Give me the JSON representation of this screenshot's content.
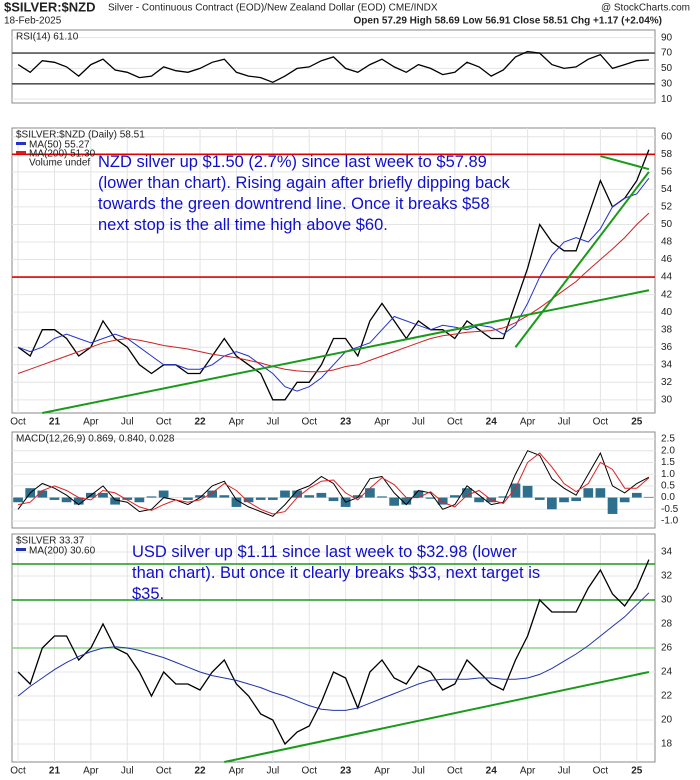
{
  "header": {
    "symbol": "$SILVER:$NZD",
    "description": "Silver - Continuous Contract (EOD)/New Zealand Dollar (EOD) CME/INDX",
    "date": "18-Feb-2025",
    "source": "@ StockCharts.com",
    "quote": "Open 57.29 High 58.69 Low 56.91 Close 58.51 Chg +1.17 (+2.04%)"
  },
  "chart_data": [
    {
      "type": "line",
      "title": "RSI(14) 61.10",
      "ylim": [
        5,
        100
      ],
      "yticks": [
        10,
        30,
        50,
        70,
        90
      ],
      "hlines": [
        {
          "value": 70,
          "color": "#555555"
        },
        {
          "value": 30,
          "color": "#555555"
        }
      ],
      "series": [
        {
          "color": "#000000",
          "values": [
            55,
            45,
            60,
            58,
            52,
            40,
            55,
            62,
            48,
            45,
            38,
            40,
            52,
            47,
            45,
            50,
            58,
            62,
            45,
            40,
            38,
            32,
            40,
            50,
            52,
            60,
            65,
            50,
            45,
            55,
            62,
            52,
            45,
            55,
            50,
            42,
            45,
            58,
            52,
            40,
            48,
            65,
            72,
            70,
            55,
            50,
            52,
            62,
            68,
            50,
            55,
            60,
            61.1
          ]
        }
      ]
    },
    {
      "type": "line",
      "title": "$SILVER:$NZD (Daily) 58.51",
      "note": "Volume undef",
      "annotation": "NZD silver up $1.50 (2.7%) since last week to $57.89 (lower than chart). Rising again after briefly dipping back towards the green downtrend line. Once it breaks $58 next stop is the all time high above $60.",
      "categories": [
        "Oct",
        null,
        null,
        "21",
        null,
        null,
        "Apr",
        null,
        null,
        "Jul",
        null,
        null,
        "Oct",
        null,
        null,
        "22",
        null,
        null,
        "Apr",
        null,
        null,
        "Jul",
        null,
        null,
        "Oct",
        null,
        null,
        "23",
        null,
        null,
        "Apr",
        null,
        null,
        "Jul",
        null,
        null,
        "Oct",
        null,
        null,
        "24",
        null,
        null,
        "Apr",
        null,
        null,
        "Jul",
        null,
        null,
        "Oct",
        null,
        null,
        "25",
        null
      ],
      "ylim": [
        28.5,
        61
      ],
      "yticks": [
        30,
        32,
        34,
        36,
        38,
        40,
        42,
        44,
        46,
        48,
        50,
        52,
        54,
        56,
        58,
        60
      ],
      "hlines": [
        {
          "value": 58,
          "color": "#e00000"
        },
        {
          "value": 44,
          "color": "#e00000"
        }
      ],
      "trendlines": [
        {
          "x0": 2,
          "y0": 28.5,
          "x1": 52,
          "y1": 42.5,
          "color": "#1a9a1a"
        },
        {
          "x0": 41,
          "y0": 36,
          "x1": 52,
          "y1": 56,
          "color": "#1a9a1a"
        },
        {
          "x0": 48,
          "y0": 57.8,
          "x1": 52,
          "y1": 56.3,
          "color": "#1a9a1a"
        }
      ],
      "series": [
        {
          "color": "#000000",
          "values": [
            36,
            35,
            38,
            38,
            37,
            35,
            36,
            39,
            37,
            36,
            34,
            33,
            34,
            34,
            33,
            33,
            35,
            37,
            35,
            34,
            33,
            30,
            30,
            32,
            32,
            34,
            37,
            37,
            35,
            39,
            41,
            39,
            37,
            39,
            38,
            38,
            37,
            39,
            38,
            37,
            37,
            41,
            45,
            50,
            48,
            47,
            47,
            51,
            55,
            52,
            53,
            55,
            58.51
          ]
        },
        {
          "name": "MA(50) 55.27",
          "color": "#2233cc",
          "values": [
            36,
            35.5,
            36,
            37,
            37.5,
            37,
            36.5,
            37,
            37.5,
            37,
            36,
            35,
            34,
            34,
            33.5,
            33.5,
            34,
            35,
            35.5,
            35,
            34,
            33,
            31.5,
            31,
            31.5,
            32.5,
            34,
            35.5,
            36,
            36.5,
            38,
            39.5,
            39,
            38.5,
            38,
            38.5,
            38.3,
            38,
            38.5,
            38.3,
            37.5,
            38.5,
            41,
            44,
            46.5,
            48,
            48.5,
            48,
            49.5,
            52,
            53,
            53.5,
            55.27
          ]
        },
        {
          "name": "MA(200) 51.30",
          "color": "#cc2222",
          "values": [
            33,
            33.5,
            34,
            34.5,
            35,
            35.5,
            36,
            36.5,
            36.8,
            37,
            36.8,
            36.5,
            36.2,
            36,
            35.8,
            35.5,
            35.2,
            35,
            34.8,
            34.5,
            34.2,
            33.8,
            33.5,
            33.3,
            33.2,
            33.2,
            33.4,
            33.8,
            34,
            34.5,
            35,
            35.5,
            36,
            36.5,
            37,
            37.3,
            37.5,
            37.7,
            37.8,
            37.9,
            38.2,
            38.8,
            39.6,
            40.5,
            41.5,
            42.5,
            43.5,
            44.8,
            46,
            47.2,
            48.5,
            50,
            51.3
          ]
        }
      ]
    },
    {
      "type": "line",
      "title": "MACD(12,26,9) 0.869, 0.840, 0.028",
      "ylim": [
        -1.3,
        2.8
      ],
      "yticks": [
        2.5,
        {
          "value": 2,
          "label": "2.0"
        },
        1.5,
        {
          "value": 1,
          "label": "1.0"
        },
        0.5,
        {
          "value": 0,
          "label": "0.0"
        },
        -0.5,
        {
          "value": -1,
          "label": "-1.0"
        }
      ],
      "series": [
        {
          "color": "#2e6f8e",
          "style": "histogram",
          "values": [
            -0.2,
            0.4,
            0.3,
            -0.1,
            -0.2,
            -0.3,
            0.2,
            0.2,
            -0.3,
            -0.1,
            -0.2,
            0.05,
            0.3,
            0,
            -0.1,
            0.1,
            0.3,
            0.1,
            -0.4,
            -0.2,
            -0.1,
            -0.1,
            0.3,
            0.3,
            0.1,
            0.2,
            -0.15,
            -0.4,
            0.1,
            0.4,
            0.05,
            -0.35,
            -0.3,
            0.3,
            -0.05,
            -0.3,
            0.1,
            0.4,
            -0.2,
            -0.2,
            0.05,
            0.6,
            0.5,
            -0.1,
            -0.5,
            -0.2,
            -0.15,
            0.4,
            0.4,
            -0.7,
            -0.2,
            0.2,
            0.028
          ]
        },
        {
          "color": "#000000",
          "values": [
            -0.5,
            0.2,
            0.6,
            0.4,
            0.1,
            -0.3,
            0.1,
            0.5,
            -0.1,
            -0.2,
            -0.6,
            -0.5,
            0,
            -0.1,
            -0.3,
            0,
            0.5,
            0.7,
            -0.1,
            -0.4,
            -0.6,
            -0.8,
            -0.3,
            0.3,
            0.5,
            0.9,
            0.6,
            -0.2,
            0,
            0.8,
            0.9,
            0.2,
            -0.3,
            0.3,
            0.2,
            -0.5,
            -0.3,
            0.5,
            0.1,
            -0.3,
            -0.2,
            1.0,
            2.0,
            1.8,
            0.8,
            0.4,
            0.1,
            1.0,
            1.9,
            0.5,
            0.2,
            0.6,
            0.869
          ]
        },
        {
          "color": "#dd2222",
          "values": [
            -0.3,
            -0.2,
            0.3,
            0.5,
            0.3,
            0,
            -0.1,
            0.3,
            0.2,
            -0.1,
            -0.4,
            -0.55,
            -0.3,
            -0.1,
            -0.2,
            -0.1,
            0.2,
            0.6,
            0.3,
            -0.2,
            -0.5,
            -0.7,
            -0.6,
            0,
            0.4,
            0.7,
            0.75,
            0.2,
            -0.1,
            0.4,
            0.85,
            0.55,
            0,
            0,
            0.25,
            -0.2,
            -0.4,
            0.1,
            0.3,
            -0.1,
            -0.25,
            0.4,
            1.5,
            1.9,
            1.3,
            0.6,
            0.25,
            0.6,
            1.5,
            1.2,
            0.4,
            0.4,
            0.84
          ]
        }
      ]
    },
    {
      "type": "line",
      "title": "$SILVER 33.37",
      "annotation": "USD silver up $1.11 since last week to $32.98 (lower than chart). But once it clearly breaks $33, next target is $35.",
      "categories": [
        "Oct",
        null,
        null,
        "21",
        null,
        null,
        "Apr",
        null,
        null,
        "Jul",
        null,
        null,
        "Oct",
        null,
        null,
        "22",
        null,
        null,
        "Apr",
        null,
        null,
        "Jul",
        null,
        null,
        "Oct",
        null,
        null,
        "23",
        null,
        null,
        "Apr",
        null,
        null,
        "Jul",
        null,
        null,
        "Oct",
        null,
        null,
        "24",
        null,
        null,
        "Apr",
        null,
        null,
        "Jul",
        null,
        null,
        "Oct",
        null,
        null,
        "25",
        null
      ],
      "ylim": [
        16.5,
        35.5
      ],
      "yticks": [
        18,
        20,
        22,
        24,
        26,
        28,
        30,
        32,
        34
      ],
      "hlines": [
        {
          "value": 33,
          "color": "#1a9a1a"
        },
        {
          "value": 30,
          "color": "#1a9a1a"
        },
        {
          "value": 26,
          "color": "#8fd08f"
        }
      ],
      "trendlines": [
        {
          "x0": 17,
          "y0": 16.5,
          "x1": 52,
          "y1": 24,
          "color": "#1a9a1a"
        }
      ],
      "series": [
        {
          "color": "#000000",
          "values": [
            24,
            23,
            26,
            27,
            27,
            25,
            26,
            28,
            26,
            25.5,
            24,
            22,
            24,
            23,
            23,
            22.5,
            24,
            25,
            23,
            22,
            20.5,
            20,
            18,
            19,
            19.5,
            21.5,
            24,
            23.5,
            21,
            24,
            25,
            23.5,
            23,
            24.5,
            24,
            22.5,
            23,
            25,
            24,
            23,
            22.5,
            25,
            27,
            30,
            29,
            29,
            29,
            31,
            32.5,
            30.5,
            29.5,
            31,
            33.37
          ]
        },
        {
          "name": "MA(200) 30.60",
          "color": "#2233aa",
          "values": [
            22,
            22.8,
            23.5,
            24.2,
            24.8,
            25.3,
            25.7,
            26,
            26.1,
            26,
            25.8,
            25.5,
            25.2,
            24.8,
            24.4,
            24,
            23.7,
            23.5,
            23.3,
            23,
            22.7,
            22.3,
            22,
            21.6,
            21.2,
            20.9,
            20.8,
            20.8,
            21,
            21.4,
            21.8,
            22.2,
            22.6,
            23,
            23.3,
            23.4,
            23.4,
            23.4,
            23.5,
            23.5,
            23.4,
            23.4,
            23.5,
            23.8,
            24.3,
            24.9,
            25.5,
            26.2,
            27,
            27.8,
            28.6,
            29.6,
            30.6
          ]
        }
      ]
    }
  ]
}
